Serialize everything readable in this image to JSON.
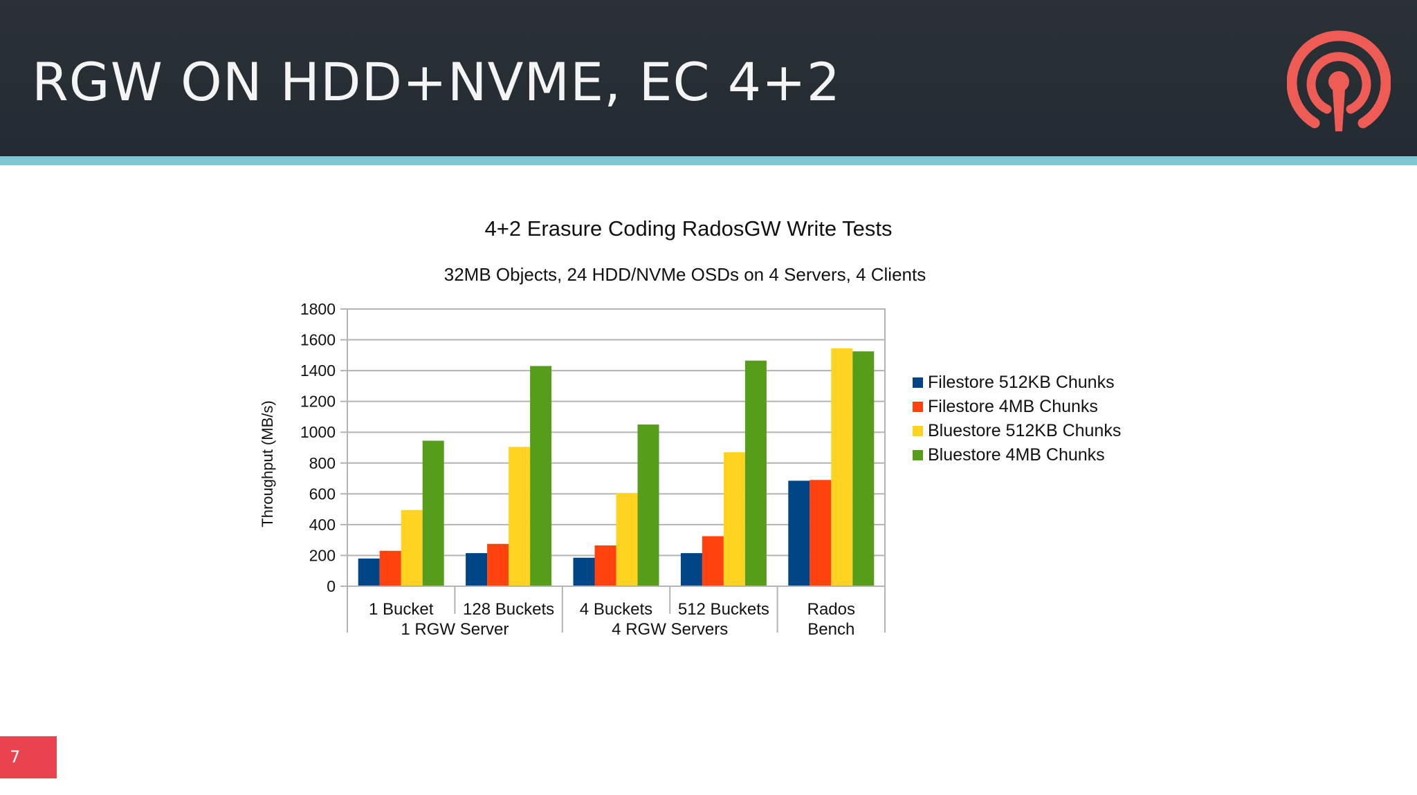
{
  "slide": {
    "title": "RGW ON HDD+NVME, EC 4+2",
    "page_number": "7",
    "logo_icon": "ceph-logo-icon",
    "colors": {
      "header": "#262e34",
      "stripe": "#7cc7d1",
      "logo": "#ef5c55",
      "page_badge": "#ea4350"
    }
  },
  "chart_data": {
    "type": "bar",
    "title": "4+2 Erasure Coding RadosGW Write Tests",
    "subtitle": "32MB Objects, 24 HDD/NVMe OSDs on 4 Servers, 4 Clients",
    "ylabel": "Throughput (MB/s)",
    "xlabel": "",
    "ylim": [
      0,
      1800
    ],
    "yticks": [
      "0",
      "200",
      "400",
      "600",
      "800",
      "1000",
      "1200",
      "1400",
      "1600",
      "1800"
    ],
    "grid": true,
    "legend_position": "right",
    "categories": [
      "1 Bucket",
      "128 Buckets",
      "4 Buckets",
      "512 Buckets",
      "Rados Bench"
    ],
    "category_lines": [
      [
        "1 Bucket"
      ],
      [
        "128 Buckets"
      ],
      [
        "4 Buckets"
      ],
      [
        "512 Buckets"
      ],
      [
        "Rados",
        "Bench"
      ]
    ],
    "groups": [
      {
        "label": "1 RGW Server",
        "categories": [
          0,
          1
        ]
      },
      {
        "label": "4 RGW Servers",
        "categories": [
          2,
          3
        ]
      },
      {
        "label": "",
        "categories": [
          4
        ]
      }
    ],
    "series": [
      {
        "name": "Filestore 512KB Chunks",
        "color": "#004586",
        "values": [
          180,
          215,
          185,
          215,
          685
        ]
      },
      {
        "name": "Filestore 4MB Chunks",
        "color": "#ff420e",
        "values": [
          230,
          275,
          265,
          325,
          690
        ]
      },
      {
        "name": "Bluestore 512KB Chunks",
        "color": "#ffd320",
        "values": [
          495,
          905,
          605,
          870,
          1545
        ]
      },
      {
        "name": "Bluestore 4MB Chunks",
        "color": "#579d1c",
        "values": [
          945,
          1430,
          1050,
          1465,
          1525
        ]
      }
    ]
  }
}
